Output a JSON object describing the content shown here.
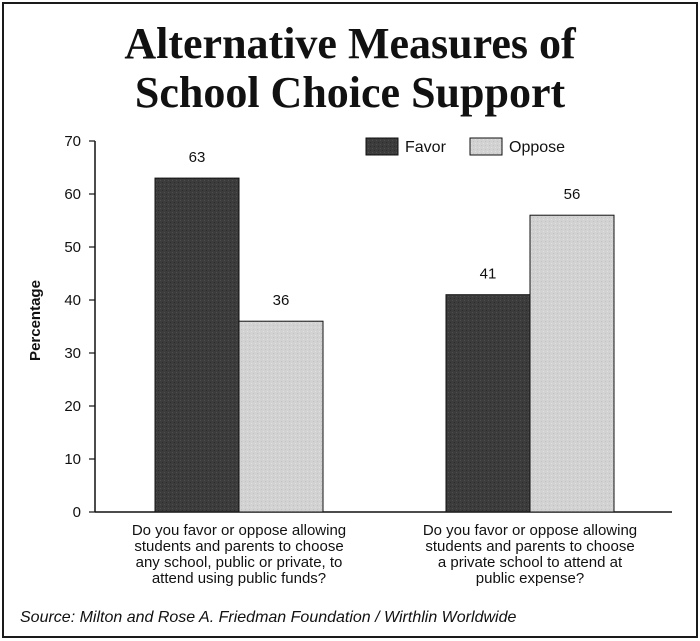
{
  "title_line1": "Alternative Measures of",
  "title_line2": "School Choice Support",
  "source": "Source:  Milton and Rose A. Friedman Foundation / Wirthlin Worldwide",
  "colors": {
    "favor": "#3c3c3c",
    "oppose": "#d2d2d2",
    "axis": "#111111"
  },
  "chart_data": {
    "type": "bar",
    "title": "Alternative Measures of School Choice Support",
    "ylabel": "Percentage",
    "xlabel": "",
    "ylim": [
      0,
      70
    ],
    "yticks": [
      0,
      10,
      20,
      30,
      40,
      50,
      60,
      70
    ],
    "grid": false,
    "legend_position": "top-right",
    "categories": [
      [
        "Do you favor or oppose allowing",
        "students and parents to choose",
        "any school, public or private, to",
        "attend using public funds?"
      ],
      [
        "Do you favor or oppose allowing",
        "students and parents to choose",
        "a private school to attend at",
        "public expense?"
      ]
    ],
    "series": [
      {
        "name": "Favor",
        "values": [
          63,
          41
        ]
      },
      {
        "name": "Oppose",
        "values": [
          36,
          56
        ]
      }
    ]
  }
}
